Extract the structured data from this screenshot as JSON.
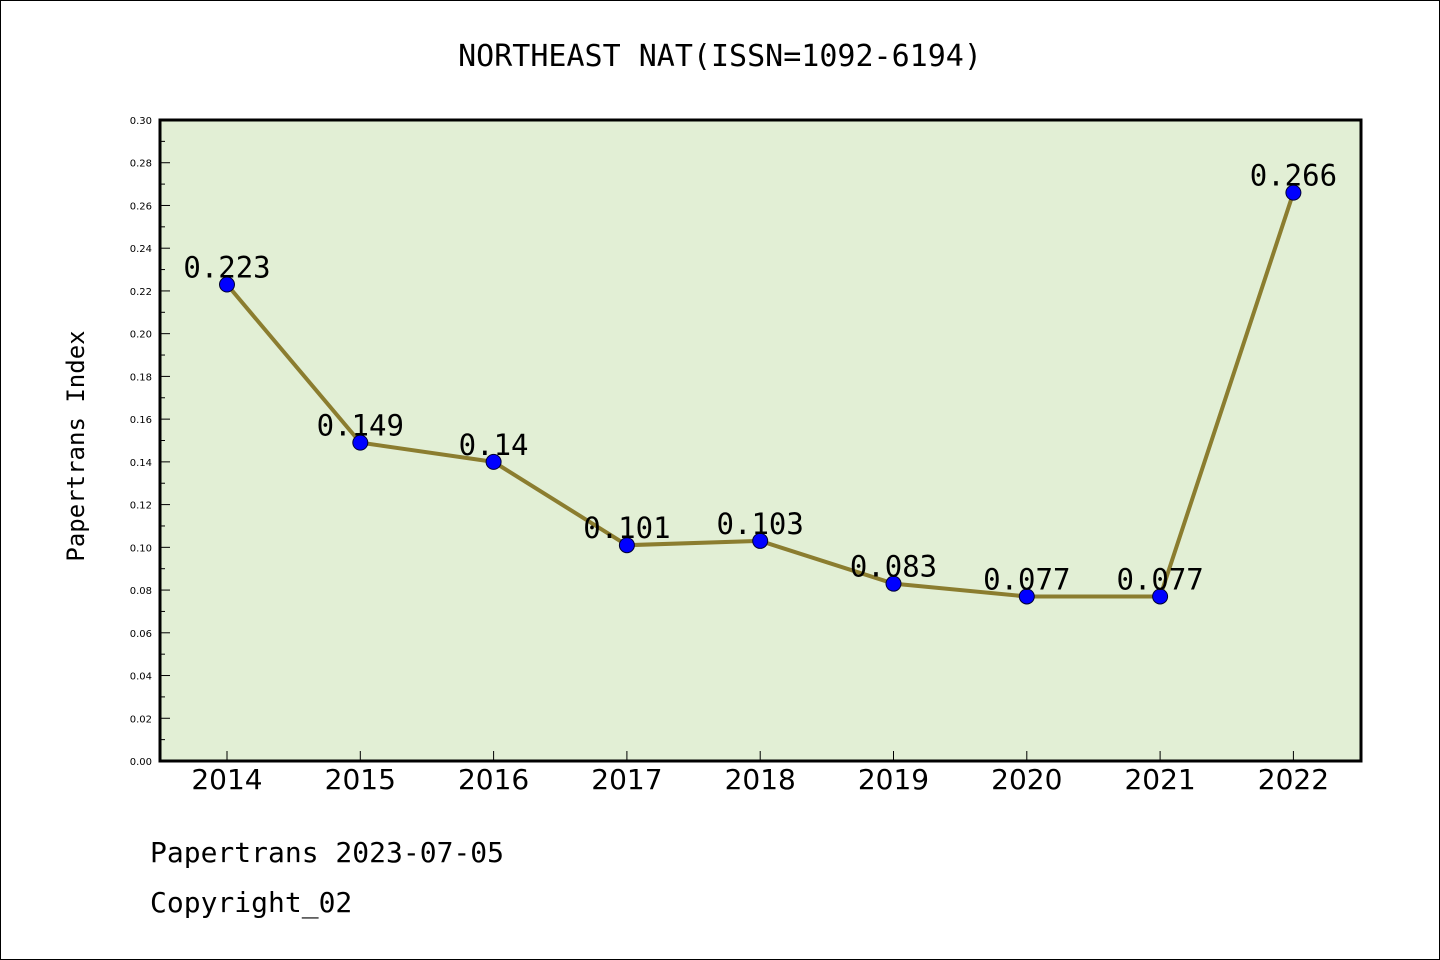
{
  "colors": {
    "plot_background": "#e2efd5",
    "line": "#8b7d2f",
    "marker": "#0000ff",
    "axes": "#000000"
  },
  "footer": {
    "line1": "Papertrans 2023-07-05",
    "line2": "Copyright_02"
  },
  "chart_data": {
    "type": "line",
    "title": "NORTHEAST NAT(ISSN=1092-6194)",
    "xlabel": "",
    "ylabel": "Papertrans Index",
    "x": [
      "2014",
      "2015",
      "2016",
      "2017",
      "2018",
      "2019",
      "2020",
      "2021",
      "2022"
    ],
    "series": [
      {
        "values": [
          0.223,
          0.149,
          0.14,
          0.101,
          0.103,
          0.083,
          0.077,
          0.077,
          0.266
        ],
        "data_labels": [
          "0.223",
          "0.149",
          "0.14",
          "0.101",
          "0.103",
          "0.083",
          "0.077",
          "0.077",
          "0.266"
        ]
      }
    ],
    "ylim": [
      0,
      0.3
    ],
    "yticks": [
      "0.00",
      "0.02",
      "0.04",
      "0.06",
      "0.08",
      "0.10",
      "0.12",
      "0.14",
      "0.16",
      "0.18",
      "0.20",
      "0.22",
      "0.24",
      "0.26",
      "0.28",
      "0.30"
    ],
    "grid": false,
    "legend": "none",
    "markers": true
  }
}
